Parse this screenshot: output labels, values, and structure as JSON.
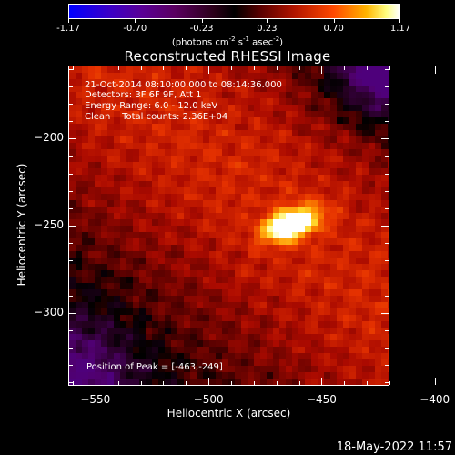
{
  "colorbar": {
    "ticks": [
      {
        "value": -1.17,
        "label": "-1.17"
      },
      {
        "value": -0.7,
        "label": "-0.70"
      },
      {
        "value": -0.23,
        "label": "-0.23"
      },
      {
        "value": 0.23,
        "label": "0.23"
      },
      {
        "value": 0.7,
        "label": "0.70"
      },
      {
        "value": 1.17,
        "label": "1.17"
      }
    ],
    "range": [
      -1.17,
      1.17
    ],
    "unit_prefix": "(photons cm",
    "unit_sup1": "-2",
    "unit_mid1": " s",
    "unit_sup2": "-1",
    "unit_mid2": " asec",
    "unit_sup3": "-2",
    "unit_suffix": ")"
  },
  "title": "Reconstructed RHESSI Image",
  "annotations": {
    "line1": "21-Oct-2014 08:10:00.000 to 08:14:36.000",
    "line2": "Detectors: 3F 6F 9F, Att 1",
    "line3": "Energy Range: 6.0 - 12.0 keV",
    "line4": "Clean    Total counts: 2.36E+04",
    "peak": "Position of Peak = [-463,-249]"
  },
  "datestamp": "18-May-2022 11:57",
  "chart_data": {
    "type": "heatmap",
    "title": "Reconstructed RHESSI Image",
    "xlabel": "Heliocentric X (arcsec)",
    "ylabel": "Heliocentric Y (arcsec)",
    "xlim": [
      -562,
      -420
    ],
    "ylim": [
      -342,
      -158
    ],
    "xticks": [
      {
        "value": -550,
        "label": "−550"
      },
      {
        "value": -500,
        "label": "−500"
      },
      {
        "value": -450,
        "label": "−450"
      },
      {
        "value": -400,
        "label": "−400"
      }
    ],
    "yticks": [
      {
        "value": -200,
        "label": "−200"
      },
      {
        "value": -250,
        "label": "−250"
      },
      {
        "value": -300,
        "label": "−300"
      }
    ],
    "peak_position": [
      -463,
      -249
    ],
    "colorscale": "red-temperature with blue negative",
    "colorscale_range": [
      -1.17,
      1.17
    ]
  }
}
